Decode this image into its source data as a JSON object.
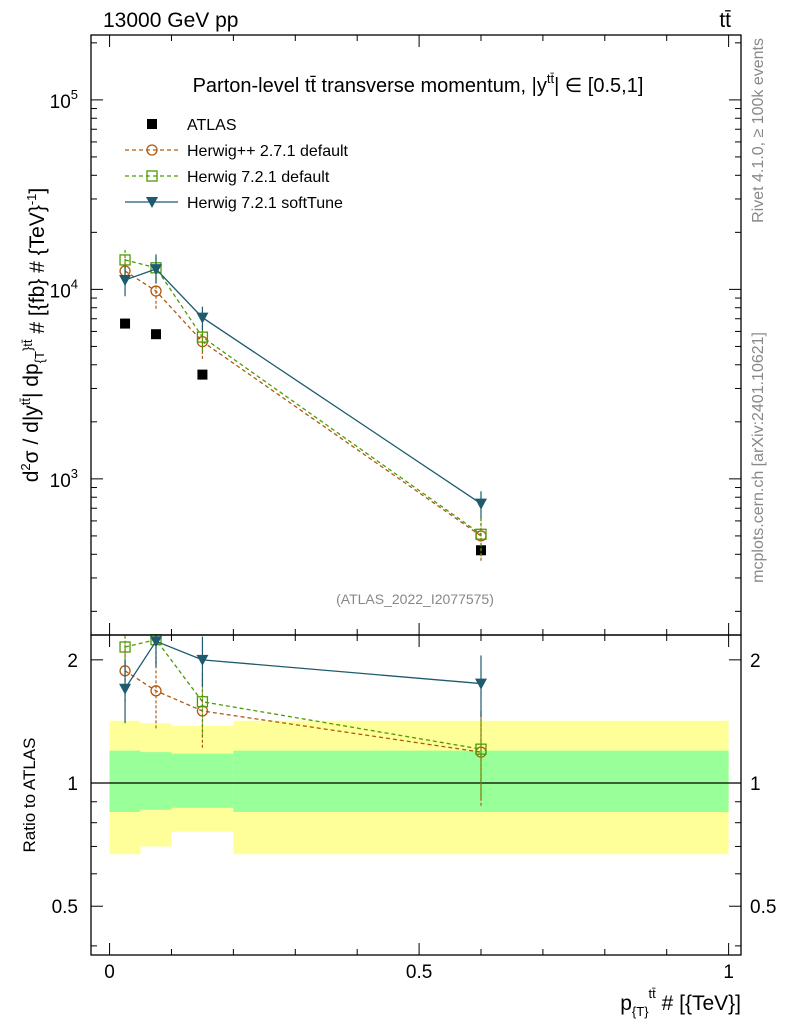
{
  "header": {
    "energy_label": "13000 GeV pp",
    "process_label": "tt̄"
  },
  "side_labels": {
    "rivet": "Rivet 4.1.0, ≥ 100k events",
    "mcplots": "mcplots.cern.ch [arXiv:2401.10621]"
  },
  "watermark": "(ATLAS_2022_I2077575)",
  "chart_data": {
    "type": "line",
    "title": "Parton-level tt̄ transverse momentum, |y^tt̄| ∈ [0.5,1]",
    "xlabel": "p_{T}^{tt̄} # [{TeV}]",
    "ylabel": "d²σ / d|y^tt̄| dp_{T}^{tt̄} # [{fb} # {TeV}⁻¹]",
    "ratio_ylabel": "Ratio to ATLAS",
    "x_range": [
      -0.03,
      1.02
    ],
    "y_range_log": [
      150,
      220000
    ],
    "ratio_range": [
      0.38,
      2.3
    ],
    "x_ticks": [
      "0",
      "0.5",
      "1"
    ],
    "y_ticks": [
      {
        "mantissa": "10",
        "exp": "3",
        "value": 1000
      },
      {
        "mantissa": "10",
        "exp": "4",
        "value": 10000
      },
      {
        "mantissa": "10",
        "exp": "5",
        "value": 100000
      }
    ],
    "ratio_ticks": [
      "0.5",
      "1",
      "2"
    ],
    "bins": [
      {
        "lo": 0.0,
        "hi": 0.05,
        "stat_lo": 0.85,
        "stat_hi": 1.2,
        "tot_lo": 0.67,
        "tot_hi": 1.42
      },
      {
        "lo": 0.05,
        "hi": 0.1,
        "stat_lo": 0.86,
        "stat_hi": 1.19,
        "tot_lo": 0.7,
        "tot_hi": 1.4
      },
      {
        "lo": 0.1,
        "hi": 0.2,
        "stat_lo": 0.87,
        "stat_hi": 1.18,
        "tot_lo": 0.76,
        "tot_hi": 1.38
      },
      {
        "lo": 0.2,
        "hi": 1.0,
        "stat_lo": 0.85,
        "stat_hi": 1.2,
        "tot_lo": 0.67,
        "tot_hi": 1.42
      }
    ],
    "data": {
      "name": "ATLAS",
      "x": [
        0.025,
        0.075,
        0.15,
        0.6
      ],
      "y": [
        6600,
        5800,
        3550,
        420
      ]
    },
    "series": [
      {
        "name": "Herwig++ 2.7.1 default",
        "color": "#b05a10",
        "marker": "circle",
        "dashed": true,
        "x": [
          0.025,
          0.075,
          0.15,
          0.6
        ],
        "y": [
          12500,
          9800,
          5300,
          500
        ],
        "y_err_lo": [
          10500,
          7900,
          4300,
          370
        ],
        "y_err_hi": [
          14500,
          11700,
          6300,
          630
        ],
        "ratio": [
          1.88,
          1.68,
          1.5,
          1.19
        ],
        "ratio_err_lo": [
          1.58,
          1.36,
          1.22,
          0.88
        ],
        "ratio_err_hi": [
          2.18,
          2.0,
          1.78,
          1.5
        ]
      },
      {
        "name": "Herwig 7.2.1 default",
        "color": "#4e9a06",
        "marker": "square",
        "dashed": true,
        "x": [
          0.025,
          0.075,
          0.15,
          0.6
        ],
        "y": [
          14300,
          13000,
          5600,
          510
        ],
        "y_err_lo": [
          12200,
          11100,
          4700,
          390
        ],
        "y_err_hi": [
          16400,
          14900,
          6500,
          630
        ],
        "ratio": [
          2.15,
          2.24,
          1.58,
          1.21
        ],
        "ratio_err_lo": [
          1.85,
          1.95,
          1.3,
          0.92
        ],
        "ratio_err_hi": [
          2.45,
          2.53,
          1.86,
          1.5
        ]
      },
      {
        "name": "Herwig 7.2.1 softTune",
        "color": "#1f5b6e",
        "marker": "triangle-down",
        "dashed": false,
        "x": [
          0.025,
          0.075,
          0.15,
          0.6
        ],
        "y": [
          11200,
          12800,
          7100,
          740
        ],
        "y_err_lo": [
          9200,
          10800,
          6100,
          620
        ],
        "y_err_hi": [
          13200,
          15300,
          8100,
          860
        ],
        "ratio": [
          1.7,
          2.22,
          2.0,
          1.75
        ],
        "ratio_err_lo": [
          1.4,
          1.92,
          1.72,
          1.45
        ],
        "ratio_err_hi": [
          2.0,
          2.52,
          2.28,
          2.05
        ]
      }
    ]
  }
}
